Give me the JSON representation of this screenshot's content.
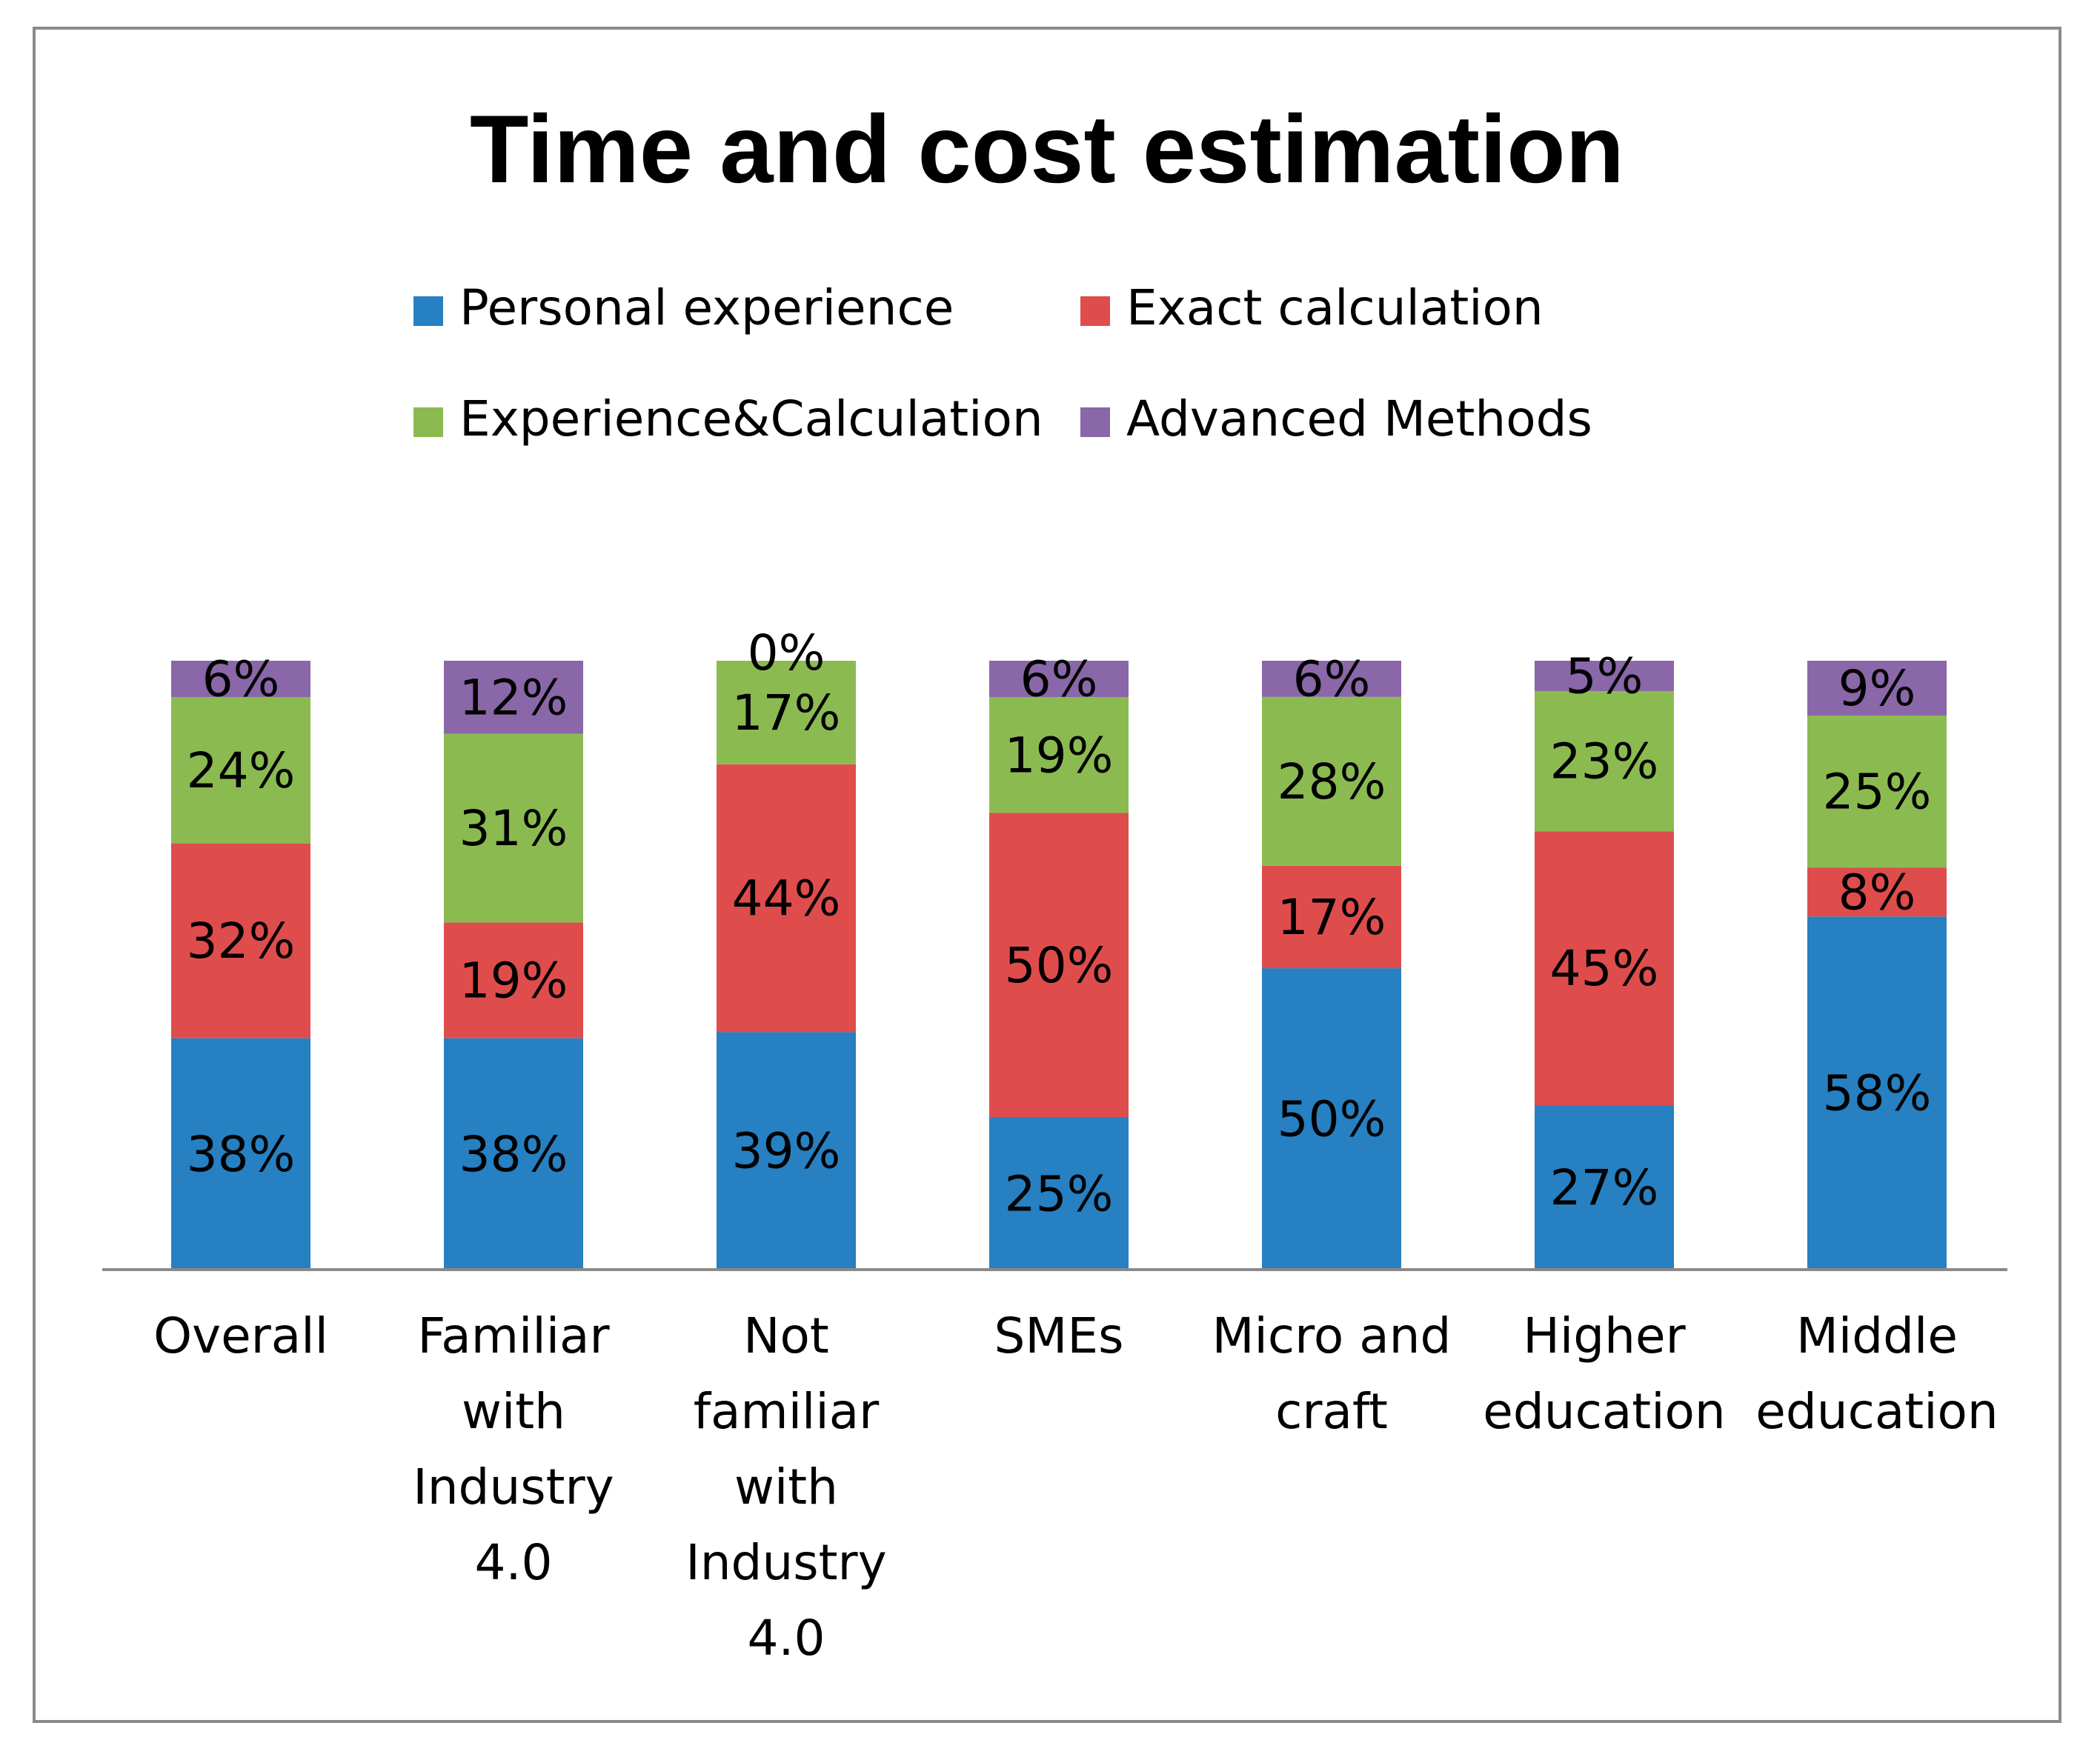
{
  "chart_data": {
    "type": "bar",
    "stacked": true,
    "title": "Time and cost estimation",
    "xlabel": "",
    "ylabel": "",
    "ylim": [
      0,
      100
    ],
    "grid": false,
    "legend_position": "top-center",
    "categories": [
      [
        "Overall"
      ],
      [
        "Familiar",
        "with",
        "Industry",
        "4.0"
      ],
      [
        "Not",
        "familiar",
        "with",
        "Industry",
        "4.0"
      ],
      [
        "SMEs"
      ],
      [
        "Micro and",
        "craft"
      ],
      [
        "Higher",
        "education"
      ],
      [
        "Middle",
        "education"
      ]
    ],
    "series": [
      {
        "name": "Personal experience",
        "color": "#2680c2",
        "values": [
          38,
          38,
          39,
          25,
          50,
          27,
          58
        ]
      },
      {
        "name": "Exact calculation",
        "color": "#de4d4c",
        "values": [
          32,
          19,
          44,
          50,
          17,
          45,
          8
        ]
      },
      {
        "name": "Experience&Calculation",
        "color": "#8bbb50",
        "values": [
          24,
          31,
          17,
          19,
          28,
          23,
          25
        ]
      },
      {
        "name": "Advanced Methods",
        "color": "#8a67a8",
        "values": [
          6,
          12,
          0,
          6,
          6,
          5,
          9
        ]
      }
    ],
    "data_labels": [
      [
        "38%",
        "38%",
        "39%",
        "25%",
        "50%",
        "27%",
        "58%"
      ],
      [
        "32%",
        "19%",
        "44%",
        "50%",
        "17%",
        "45%",
        "8%"
      ],
      [
        "24%",
        "31%",
        "17%",
        "19%",
        "28%",
        "23%",
        "25%"
      ],
      [
        "6%",
        "12%",
        "0%",
        "6%",
        "6%",
        "5%",
        "9%"
      ]
    ]
  }
}
